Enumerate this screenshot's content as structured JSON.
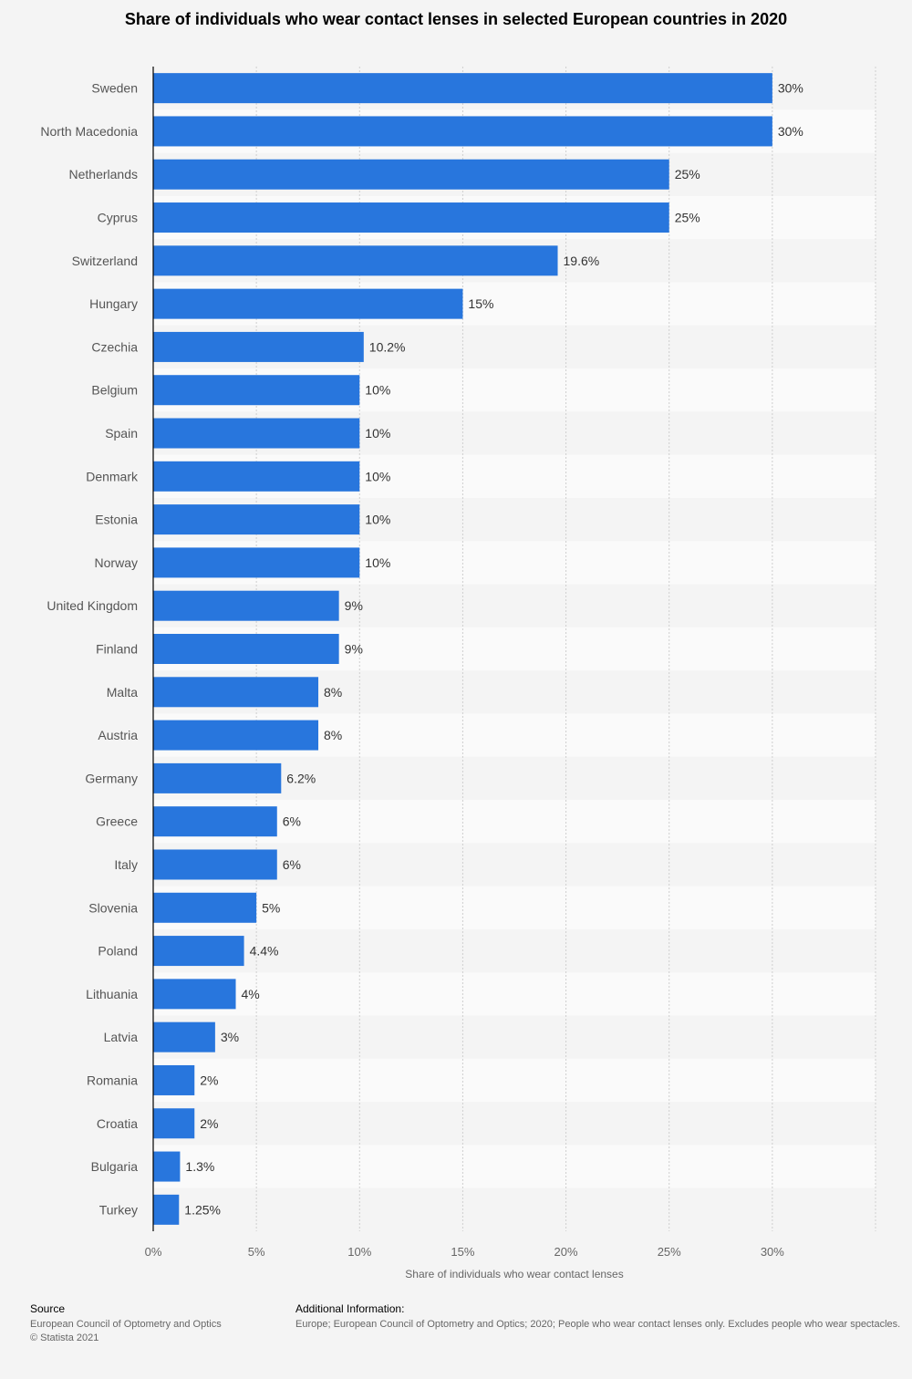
{
  "chart_data": {
    "type": "bar",
    "orientation": "horizontal",
    "title": "Share of individuals who wear contact lenses in selected European countries in 2020",
    "xlabel": "Share of individuals who wear contact lenses",
    "ylabel": "",
    "categories": [
      "Sweden",
      "North Macedonia",
      "Netherlands",
      "Cyprus",
      "Switzerland",
      "Hungary",
      "Czechia",
      "Belgium",
      "Spain",
      "Denmark",
      "Estonia",
      "Norway",
      "United Kingdom",
      "Finland",
      "Malta",
      "Austria",
      "Germany",
      "Greece",
      "Italy",
      "Slovenia",
      "Poland",
      "Lithuania",
      "Latvia",
      "Romania",
      "Croatia",
      "Bulgaria",
      "Turkey"
    ],
    "values": [
      30,
      30,
      25,
      25,
      19.6,
      15,
      10.2,
      10,
      10,
      10,
      10,
      10,
      9,
      9,
      8,
      8,
      6.2,
      6,
      6,
      5,
      4.4,
      4,
      3,
      2,
      2,
      1.3,
      1.25
    ],
    "value_labels": [
      "30%",
      "30%",
      "25%",
      "25%",
      "19.6%",
      "15%",
      "10.2%",
      "10%",
      "10%",
      "10%",
      "10%",
      "10%",
      "9%",
      "9%",
      "8%",
      "8%",
      "6.2%",
      "6%",
      "6%",
      "5%",
      "4.4%",
      "4%",
      "3%",
      "2%",
      "2%",
      "1.3%",
      "1.25%"
    ],
    "xlim": [
      0,
      35
    ],
    "xticks": [
      0,
      5,
      10,
      15,
      20,
      25,
      30
    ],
    "xtick_labels": [
      "0%",
      "5%",
      "10%",
      "15%",
      "20%",
      "25%",
      "30%"
    ],
    "grid": true,
    "bar_color": "#2876dd"
  },
  "footer": {
    "source_heading": "Source",
    "source_lines": [
      "European Council of Optometry and Optics",
      "© Statista 2021"
    ],
    "additional_heading": "Additional Information:",
    "additional_text": "Europe; European Council of Optometry and Optics; 2020; People who wear contact lenses only. Excludes people who wear spectacles."
  }
}
